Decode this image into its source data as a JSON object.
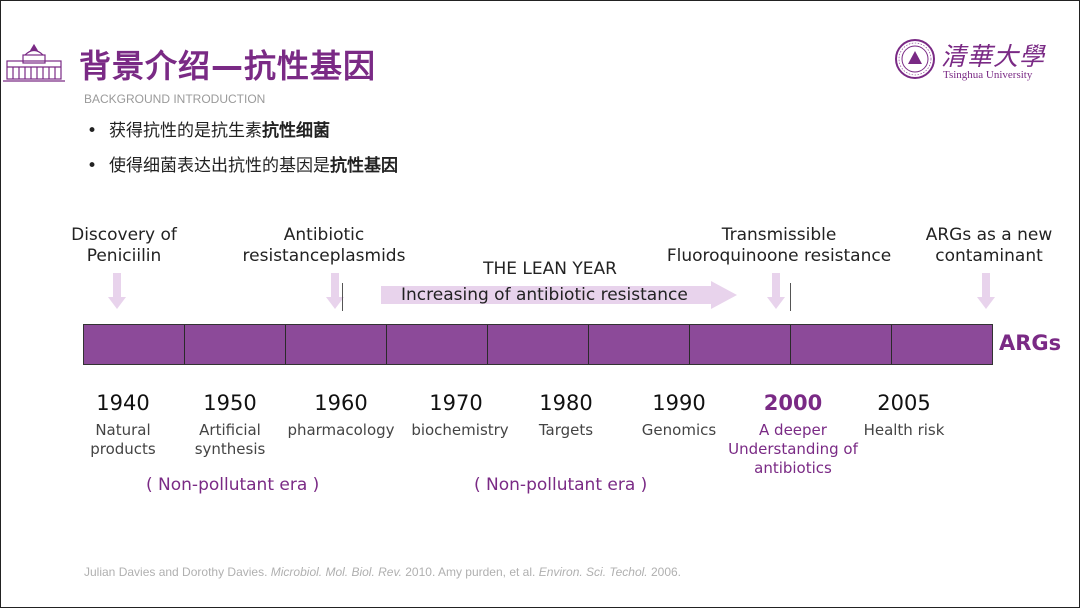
{
  "header": {
    "title": "背景介绍—抗性基因",
    "subtitle": "BACKGROUND INTRODUCTION",
    "university_name": "Tsinghua University",
    "university_name_cn": "清華大學"
  },
  "bullets": [
    {
      "prefix": "获得抗性的是抗生素",
      "bold": "抗性细菌"
    },
    {
      "prefix": "使得细菌表达出抗性的基因是",
      "bold": "抗性基因"
    }
  ],
  "events": {
    "penicillin": [
      "Discovery of",
      "Peniciilin"
    ],
    "plasmids": [
      "Antibiotic",
      "resistanceplasmids"
    ],
    "lean_year": "THE LEAN YEAR",
    "increasing": "Increasing of antibiotic resistance",
    "fluoro": [
      "Transmissible",
      "Fluoroquinoone resistance"
    ],
    "args_new": [
      "ARGs as a new",
      "contaminant"
    ]
  },
  "timeline_label": "ARGs",
  "years": [
    {
      "year": "1940",
      "desc": [
        "Natural",
        "products"
      ]
    },
    {
      "year": "1950",
      "desc": [
        "Artificial",
        "synthesis"
      ]
    },
    {
      "year": "1960",
      "desc": [
        "pharmacology"
      ]
    },
    {
      "year": "1970",
      "desc": [
        "biochemistry"
      ]
    },
    {
      "year": "1980",
      "desc": [
        "Targets"
      ]
    },
    {
      "year": "1990",
      "desc": [
        "Genomics"
      ]
    },
    {
      "year": "2000",
      "desc": [
        "A deeper",
        "Understanding of",
        "antibiotics"
      ]
    },
    {
      "year": "2005",
      "desc": [
        "Health risk"
      ]
    }
  ],
  "eras": [
    "( Non-pollutant era )",
    "( Non-pollutant era )"
  ],
  "citation": {
    "part1": "Julian Davies and Dorothy Davies. ",
    "journal1": "Microbiol. Mol. Biol. Rev.",
    "part2": " 2010. Amy purden, et al. ",
    "journal2": "Environ. Sci. Techol.",
    "part3": " 2006."
  },
  "colors": {
    "accent": "#7a2a85",
    "bar": "#8c4a99",
    "arrow": "#e8d3ec"
  }
}
